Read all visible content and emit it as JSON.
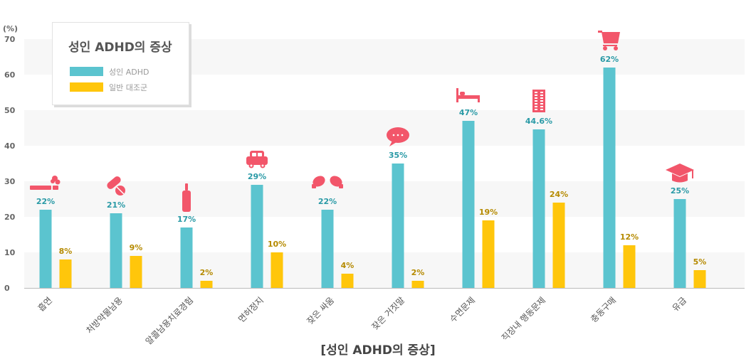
{
  "chart_data": {
    "type": "bar",
    "title": "성인 ADHD의 증상",
    "xlabel": "[성인 ADHD의 증상]",
    "ylabel": "(%)",
    "ylim": [
      0,
      70
    ],
    "yticks": [
      0,
      10,
      20,
      30,
      40,
      50,
      60,
      70
    ],
    "grid": "horizontal bands",
    "legend_position": "top-left",
    "categories": [
      "흡연",
      "처방약물남용",
      "알콜남용치료경험",
      "면허정지",
      "잦은 싸움",
      "잦은 거짓말",
      "수면문제",
      "직장내 행동문제",
      "충동구매",
      "유급"
    ],
    "category_icons": [
      "cigarette-icon",
      "pill-icon",
      "bottle-icon",
      "car-icon",
      "boxing-glove-icon",
      "speech-bubble-icon",
      "bed-icon",
      "building-icon",
      "shopping-cart-icon",
      "graduation-cap-icon"
    ],
    "series": [
      {
        "name": "성인 ADHD",
        "color": "#5bc4cf",
        "label_color": "#2a9aa6",
        "values": [
          22,
          21,
          17,
          29,
          22,
          35,
          47,
          44.6,
          62,
          25
        ],
        "labels": [
          "22%",
          "21%",
          "17%",
          "29%",
          "22%",
          "35%",
          "47%",
          "44.6%",
          "62%",
          "25%"
        ]
      },
      {
        "name": "일반 대조군",
        "color": "#ffc60b",
        "label_color": "#b58a00",
        "values": [
          8,
          9,
          2,
          10,
          4,
          2,
          19,
          24,
          12,
          5
        ],
        "labels": [
          "8%",
          "9%",
          "2%",
          "10%",
          "4%",
          "2%",
          "19%",
          "24%",
          "12%",
          "5%"
        ]
      }
    ],
    "icon_color": "#f2566a"
  }
}
